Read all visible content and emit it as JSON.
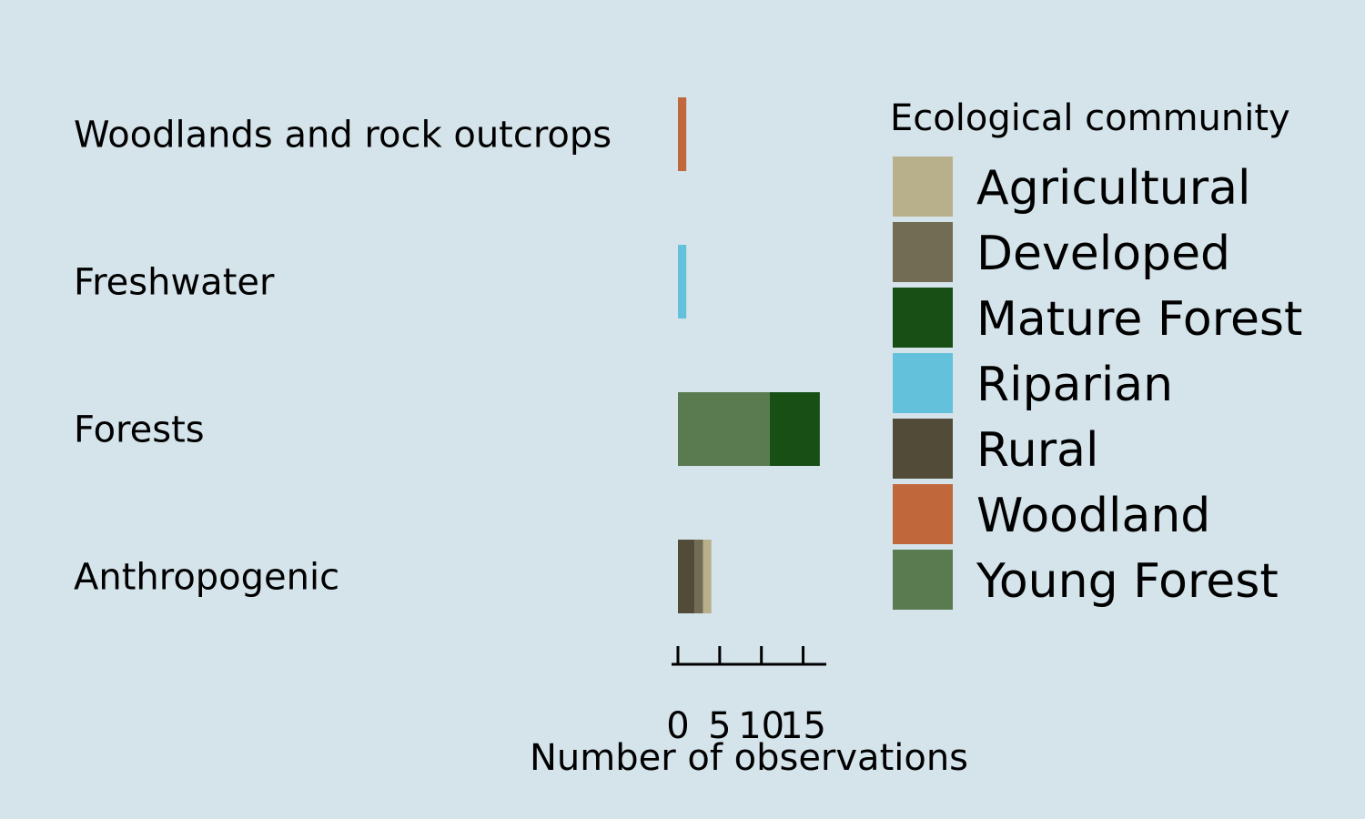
{
  "chart_data": {
    "type": "bar",
    "orientation": "horizontal",
    "stacked": true,
    "categories": [
      "Woodlands and rock outcrops",
      "Freshwater",
      "Forests",
      "Anthropogenic"
    ],
    "series": [
      {
        "name": "Agricultural",
        "color": "#b8b08b",
        "values": [
          0,
          0,
          0,
          1
        ]
      },
      {
        "name": "Developed",
        "color": "#726c55",
        "values": [
          0,
          0,
          0,
          1
        ]
      },
      {
        "name": "Mature Forest",
        "color": "#184f15",
        "values": [
          0,
          0,
          6,
          0
        ]
      },
      {
        "name": "Riparian",
        "color": "#63c1dc",
        "values": [
          0,
          1,
          0,
          0
        ]
      },
      {
        "name": "Rural",
        "color": "#524b37",
        "values": [
          0,
          0,
          0,
          2
        ]
      },
      {
        "name": "Woodland",
        "color": "#c0673c",
        "values": [
          1,
          0,
          0,
          0
        ]
      },
      {
        "name": "Young Forest",
        "color": "#5a7a50",
        "values": [
          0,
          0,
          11,
          0
        ]
      }
    ],
    "stack_order": [
      "Rural",
      "Developed",
      "Agricultural",
      "Young Forest",
      "Mature Forest",
      "Riparian",
      "Woodland"
    ],
    "xlabel": "Number of observations",
    "xlim": [
      0,
      17
    ],
    "xticks": [
      0,
      5,
      10,
      15
    ],
    "xtick_labels": [
      "0",
      "5",
      "10",
      "15"
    ],
    "legend": {
      "title": "Ecological community",
      "position": "right",
      "entries": [
        "Agricultural",
        "Developed",
        "Mature Forest",
        "Riparian",
        "Rural",
        "Woodland",
        "Young Forest"
      ]
    },
    "grid": false
  }
}
